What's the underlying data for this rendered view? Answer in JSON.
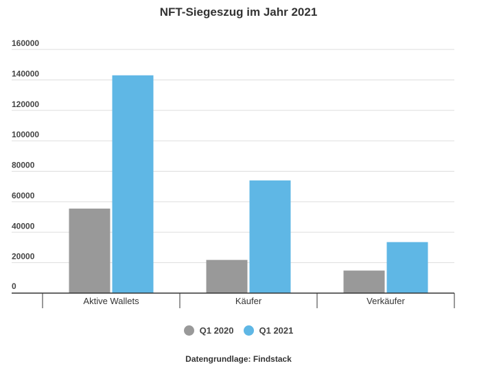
{
  "chart_data": {
    "type": "bar",
    "title": "NFT-Siegeszug im Jahr 2021",
    "categories": [
      "Aktive Wallets",
      "Käufer",
      "Verkäufer"
    ],
    "series": [
      {
        "name": "Q1 2020",
        "color": "#999999",
        "values": [
          55500,
          21800,
          14800
        ]
      },
      {
        "name": "Q1 2021",
        "color": "#5fb7e5",
        "values": [
          143000,
          74000,
          33500
        ]
      }
    ],
    "y_ticks": [
      "0",
      "20000",
      "40000",
      "60000",
      "80000",
      "100000",
      "120000",
      "140000",
      "160000"
    ],
    "ylim": [
      0,
      160000
    ],
    "grid": true,
    "legend_position": "bottom-center",
    "source": "Datengrundlage: Findstack"
  }
}
